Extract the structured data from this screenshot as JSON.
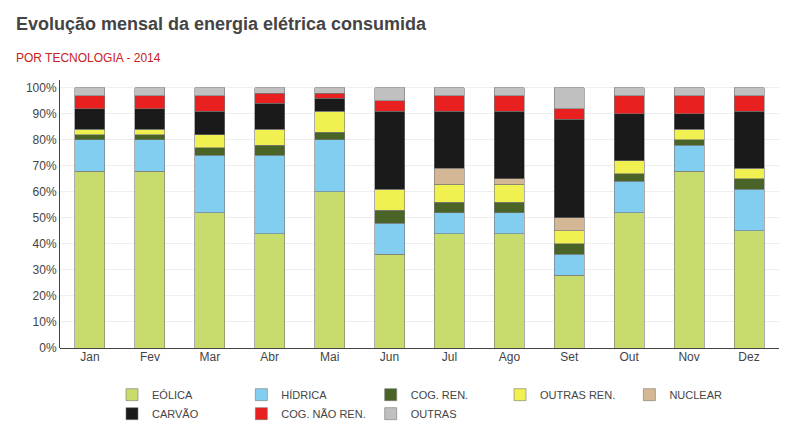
{
  "chart_data": {
    "type": "bar",
    "title": "Evolução mensal da energia elétrica consumida",
    "subtitle": "POR TECNOLOGIA - 2014",
    "categories": [
      "Jan",
      "Fev",
      "Mar",
      "Abr",
      "Mai",
      "Jun",
      "Jul",
      "Ago",
      "Set",
      "Out",
      "Nov",
      "Dez"
    ],
    "series": [
      {
        "name": "EÓLICA",
        "color": "#c8dc6e",
        "values": [
          68,
          68,
          52,
          44,
          60,
          36,
          44,
          44,
          28,
          52,
          68,
          45
        ]
      },
      {
        "name": "HÍDRICA",
        "color": "#82cef0",
        "values": [
          12,
          12,
          22,
          30,
          20,
          12,
          8,
          8,
          8,
          12,
          10,
          16
        ]
      },
      {
        "name": "COG. REN.",
        "color": "#4a6428",
        "values": [
          2,
          2,
          3,
          4,
          3,
          5,
          4,
          4,
          4,
          3,
          2,
          4
        ]
      },
      {
        "name": "OUTRAS REN.",
        "color": "#f0f050",
        "values": [
          2,
          2,
          5,
          6,
          8,
          8,
          7,
          7,
          5,
          5,
          4,
          4
        ]
      },
      {
        "name": "NUCLEAR",
        "color": "#d4b896",
        "values": [
          0,
          0,
          0,
          0,
          0,
          0,
          6,
          2,
          5,
          0,
          0,
          0
        ]
      },
      {
        "name": "CARVÃO",
        "color": "#1a1a1a",
        "values": [
          8,
          8,
          9,
          10,
          5,
          30,
          22,
          26,
          38,
          18,
          6,
          22
        ]
      },
      {
        "name": "COG. NÃO REN.",
        "color": "#e82020",
        "values": [
          5,
          5,
          6,
          4,
          2,
          4,
          6,
          6,
          4,
          7,
          7,
          6
        ]
      },
      {
        "name": "OUTRAS",
        "color": "#c0c0c0",
        "values": [
          3,
          3,
          3,
          2,
          2,
          5,
          3,
          3,
          8,
          3,
          3,
          3
        ]
      }
    ],
    "stacked": true,
    "ylim": [
      0,
      103
    ],
    "yticks": [
      {
        "value": 0,
        "label": "0%"
      },
      {
        "value": 10,
        "label": "10%"
      },
      {
        "value": 20,
        "label": "20%"
      },
      {
        "value": 30,
        "label": "30%"
      },
      {
        "value": 40,
        "label": "40%"
      },
      {
        "value": 50,
        "label": "50%"
      },
      {
        "value": 60,
        "label": "60%"
      },
      {
        "value": 70,
        "label": "70%"
      },
      {
        "value": 80,
        "label": "80%"
      },
      {
        "value": 90,
        "label": "90%"
      },
      {
        "value": 100,
        "label": "100%"
      }
    ],
    "grid": true,
    "legend": "bottom"
  }
}
